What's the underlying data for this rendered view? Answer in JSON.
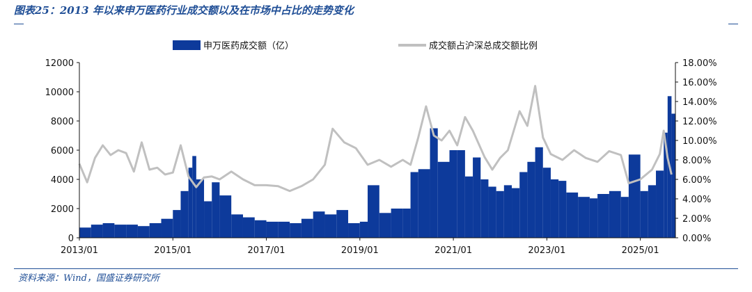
{
  "title": "图表25：2013 年以来申万医药行业成交额以及在市场中占比的走势变化",
  "source": "资料来源：Wind，国盛证券研究所",
  "colors": {
    "bars": "#0d3a9b",
    "line": "#c0c0c0",
    "accent": "#1f4e96"
  },
  "chart_data": {
    "type": "bar",
    "title": "",
    "legend_position": "top",
    "grid": false,
    "x_ticks": [
      "2013/01",
      "2015/01",
      "2017/01",
      "2019/01",
      "2021/01",
      "2023/01",
      "2025/01"
    ],
    "y_left": {
      "range": [
        0,
        12000
      ],
      "ticks": [
        "0",
        "2000",
        "4000",
        "6000",
        "8000",
        "10000",
        "12000"
      ]
    },
    "y_right": {
      "range": [
        0,
        18
      ],
      "ticks": [
        "0.00%",
        "2.00%",
        "4.00%",
        "6.00%",
        "8.00%",
        "10.00%",
        "12.00%",
        "14.00%",
        "16.00%",
        "18.00%"
      ]
    },
    "series": [
      {
        "name": "申万医药成交额（亿）",
        "type": "bar",
        "axis": "left",
        "points": [
          [
            "2013/01",
            700
          ],
          [
            "2013/04",
            900
          ],
          [
            "2013/07",
            1000
          ],
          [
            "2013/10",
            900
          ],
          [
            "2014/01",
            900
          ],
          [
            "2014/04",
            800
          ],
          [
            "2014/07",
            1000
          ],
          [
            "2014/10",
            1300
          ],
          [
            "2015/01",
            1900
          ],
          [
            "2015/03",
            3200
          ],
          [
            "2015/05",
            4800
          ],
          [
            "2015/06",
            5600
          ],
          [
            "2015/07",
            4000
          ],
          [
            "2015/09",
            2500
          ],
          [
            "2015/11",
            3800
          ],
          [
            "2016/01",
            2900
          ],
          [
            "2016/04",
            1600
          ],
          [
            "2016/07",
            1400
          ],
          [
            "2016/10",
            1200
          ],
          [
            "2017/01",
            1100
          ],
          [
            "2017/04",
            1100
          ],
          [
            "2017/07",
            1000
          ],
          [
            "2017/10",
            1300
          ],
          [
            "2018/01",
            1800
          ],
          [
            "2018/04",
            1600
          ],
          [
            "2018/07",
            1900
          ],
          [
            "2018/10",
            1000
          ],
          [
            "2019/01",
            1100
          ],
          [
            "2019/03",
            3600
          ],
          [
            "2019/06",
            1700
          ],
          [
            "2019/09",
            2000
          ],
          [
            "2019/12",
            2000
          ],
          [
            "2020/02",
            4500
          ],
          [
            "2020/04",
            4700
          ],
          [
            "2020/07",
            7500
          ],
          [
            "2020/09",
            5200
          ],
          [
            "2020/12",
            6000
          ],
          [
            "2021/02",
            6000
          ],
          [
            "2021/04",
            4200
          ],
          [
            "2021/06",
            5500
          ],
          [
            "2021/08",
            4000
          ],
          [
            "2021/10",
            3500
          ],
          [
            "2021/12",
            3200
          ],
          [
            "2022/02",
            3600
          ],
          [
            "2022/04",
            3400
          ],
          [
            "2022/06",
            4500
          ],
          [
            "2022/08",
            5200
          ],
          [
            "2022/10",
            6200
          ],
          [
            "2022/12",
            4800
          ],
          [
            "2023/02",
            4000
          ],
          [
            "2023/04",
            3900
          ],
          [
            "2023/06",
            3100
          ],
          [
            "2023/09",
            2800
          ],
          [
            "2023/12",
            2700
          ],
          [
            "2024/02",
            3000
          ],
          [
            "2024/05",
            3200
          ],
          [
            "2024/08",
            2800
          ],
          [
            "2024/10",
            5700
          ],
          [
            "2025/01",
            3200
          ],
          [
            "2025/03",
            3600
          ],
          [
            "2025/05",
            4600
          ],
          [
            "2025/07",
            7200
          ],
          [
            "2025/08",
            9700
          ],
          [
            "2025/09",
            8500
          ]
        ]
      },
      {
        "name": "成交额占沪深总成交额比例",
        "type": "line",
        "axis": "right",
        "points": [
          [
            "2013/01",
            7.6
          ],
          [
            "2013/03",
            5.7
          ],
          [
            "2013/05",
            8.2
          ],
          [
            "2013/07",
            9.5
          ],
          [
            "2013/09",
            8.5
          ],
          [
            "2013/11",
            9.0
          ],
          [
            "2014/01",
            8.7
          ],
          [
            "2014/03",
            6.8
          ],
          [
            "2014/05",
            9.8
          ],
          [
            "2014/07",
            7.0
          ],
          [
            "2014/09",
            7.2
          ],
          [
            "2014/11",
            6.5
          ],
          [
            "2015/01",
            6.7
          ],
          [
            "2015/03",
            9.5
          ],
          [
            "2015/05",
            6.3
          ],
          [
            "2015/07",
            5.2
          ],
          [
            "2015/09",
            6.2
          ],
          [
            "2015/11",
            6.3
          ],
          [
            "2016/01",
            6.0
          ],
          [
            "2016/04",
            6.8
          ],
          [
            "2016/07",
            6.0
          ],
          [
            "2016/10",
            5.4
          ],
          [
            "2017/01",
            5.4
          ],
          [
            "2017/04",
            5.3
          ],
          [
            "2017/07",
            4.8
          ],
          [
            "2017/10",
            5.3
          ],
          [
            "2018/01",
            6.0
          ],
          [
            "2018/04",
            7.5
          ],
          [
            "2018/06",
            11.2
          ],
          [
            "2018/09",
            9.8
          ],
          [
            "2018/12",
            9.2
          ],
          [
            "2019/03",
            7.5
          ],
          [
            "2019/06",
            8.0
          ],
          [
            "2019/09",
            7.3
          ],
          [
            "2019/12",
            8.0
          ],
          [
            "2020/02",
            7.5
          ],
          [
            "2020/04",
            10.3
          ],
          [
            "2020/06",
            13.5
          ],
          [
            "2020/08",
            10.5
          ],
          [
            "2020/10",
            10.0
          ],
          [
            "2020/12",
            11.0
          ],
          [
            "2021/02",
            9.5
          ],
          [
            "2021/04",
            12.4
          ],
          [
            "2021/06",
            11.0
          ],
          [
            "2021/09",
            8.3
          ],
          [
            "2021/11",
            7.0
          ],
          [
            "2022/01",
            8.2
          ],
          [
            "2022/03",
            9.0
          ],
          [
            "2022/06",
            13.0
          ],
          [
            "2022/08",
            11.5
          ],
          [
            "2022/10",
            15.6
          ],
          [
            "2022/12",
            10.3
          ],
          [
            "2023/02",
            8.6
          ],
          [
            "2023/05",
            8.0
          ],
          [
            "2023/08",
            9.0
          ],
          [
            "2023/11",
            8.2
          ],
          [
            "2024/02",
            7.8
          ],
          [
            "2024/05",
            8.9
          ],
          [
            "2024/08",
            8.5
          ],
          [
            "2024/10",
            5.6
          ],
          [
            "2025/01",
            6.0
          ],
          [
            "2025/04",
            7.0
          ],
          [
            "2025/06",
            8.6
          ],
          [
            "2025/07",
            11.0
          ],
          [
            "2025/08",
            8.2
          ],
          [
            "2025/09",
            6.5
          ]
        ]
      }
    ]
  }
}
